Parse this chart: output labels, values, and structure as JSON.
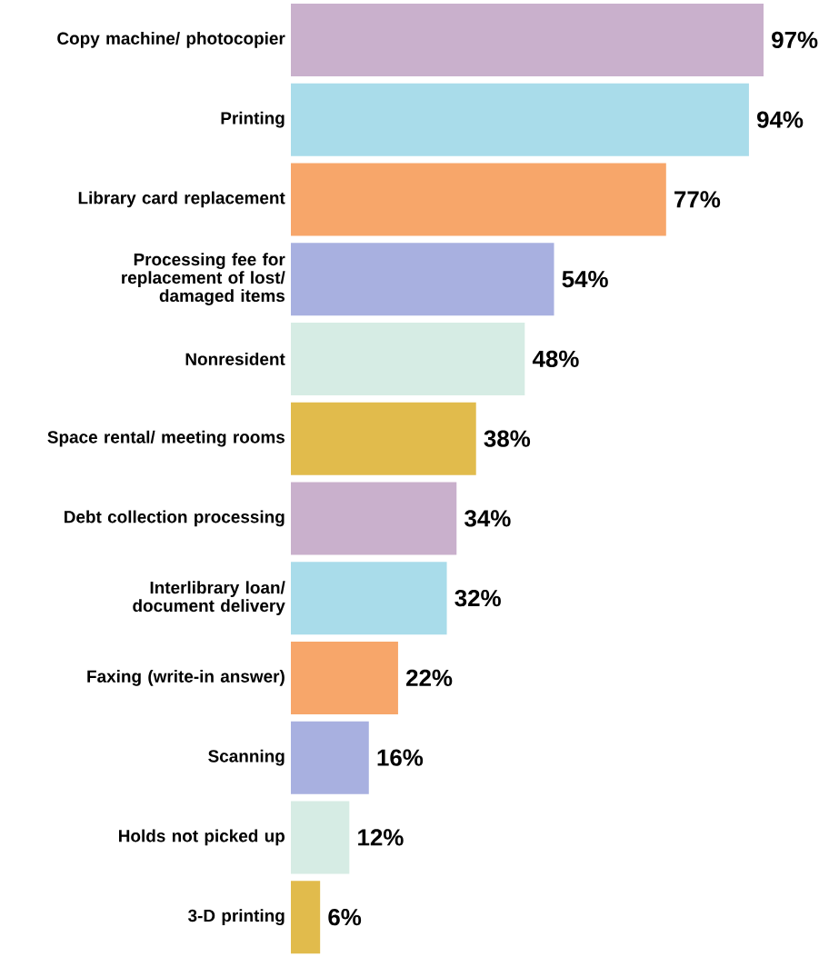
{
  "chart_data": {
    "type": "bar",
    "orientation": "horizontal",
    "categories": [
      "Copy machine/ photocopier",
      "Printing",
      "Library card replacement",
      "Processing fee for replacement of lost/ damaged items",
      "Nonresident",
      "Space rental/ meeting rooms",
      "Debt collection processing",
      "Interlibrary loan/ document delivery",
      "Faxing (write-in answer)",
      "Scanning",
      "Holds not picked up",
      "3-D printing"
    ],
    "values": [
      97,
      94,
      77,
      54,
      48,
      38,
      34,
      32,
      22,
      16,
      12,
      6
    ],
    "value_labels": [
      "97%",
      "94%",
      "77%",
      "54%",
      "48%",
      "38%",
      "34%",
      "32%",
      "22%",
      "16%",
      "12%",
      "6%"
    ],
    "colors": [
      "#c9b0cc",
      "#a9dcea",
      "#f7a66a",
      "#a8b0e0",
      "#d6ece4",
      "#e1bb4c",
      "#c9b0cc",
      "#a9dcea",
      "#f7a66a",
      "#a8b0e0",
      "#d6ece4",
      "#e1bb4c"
    ]
  }
}
